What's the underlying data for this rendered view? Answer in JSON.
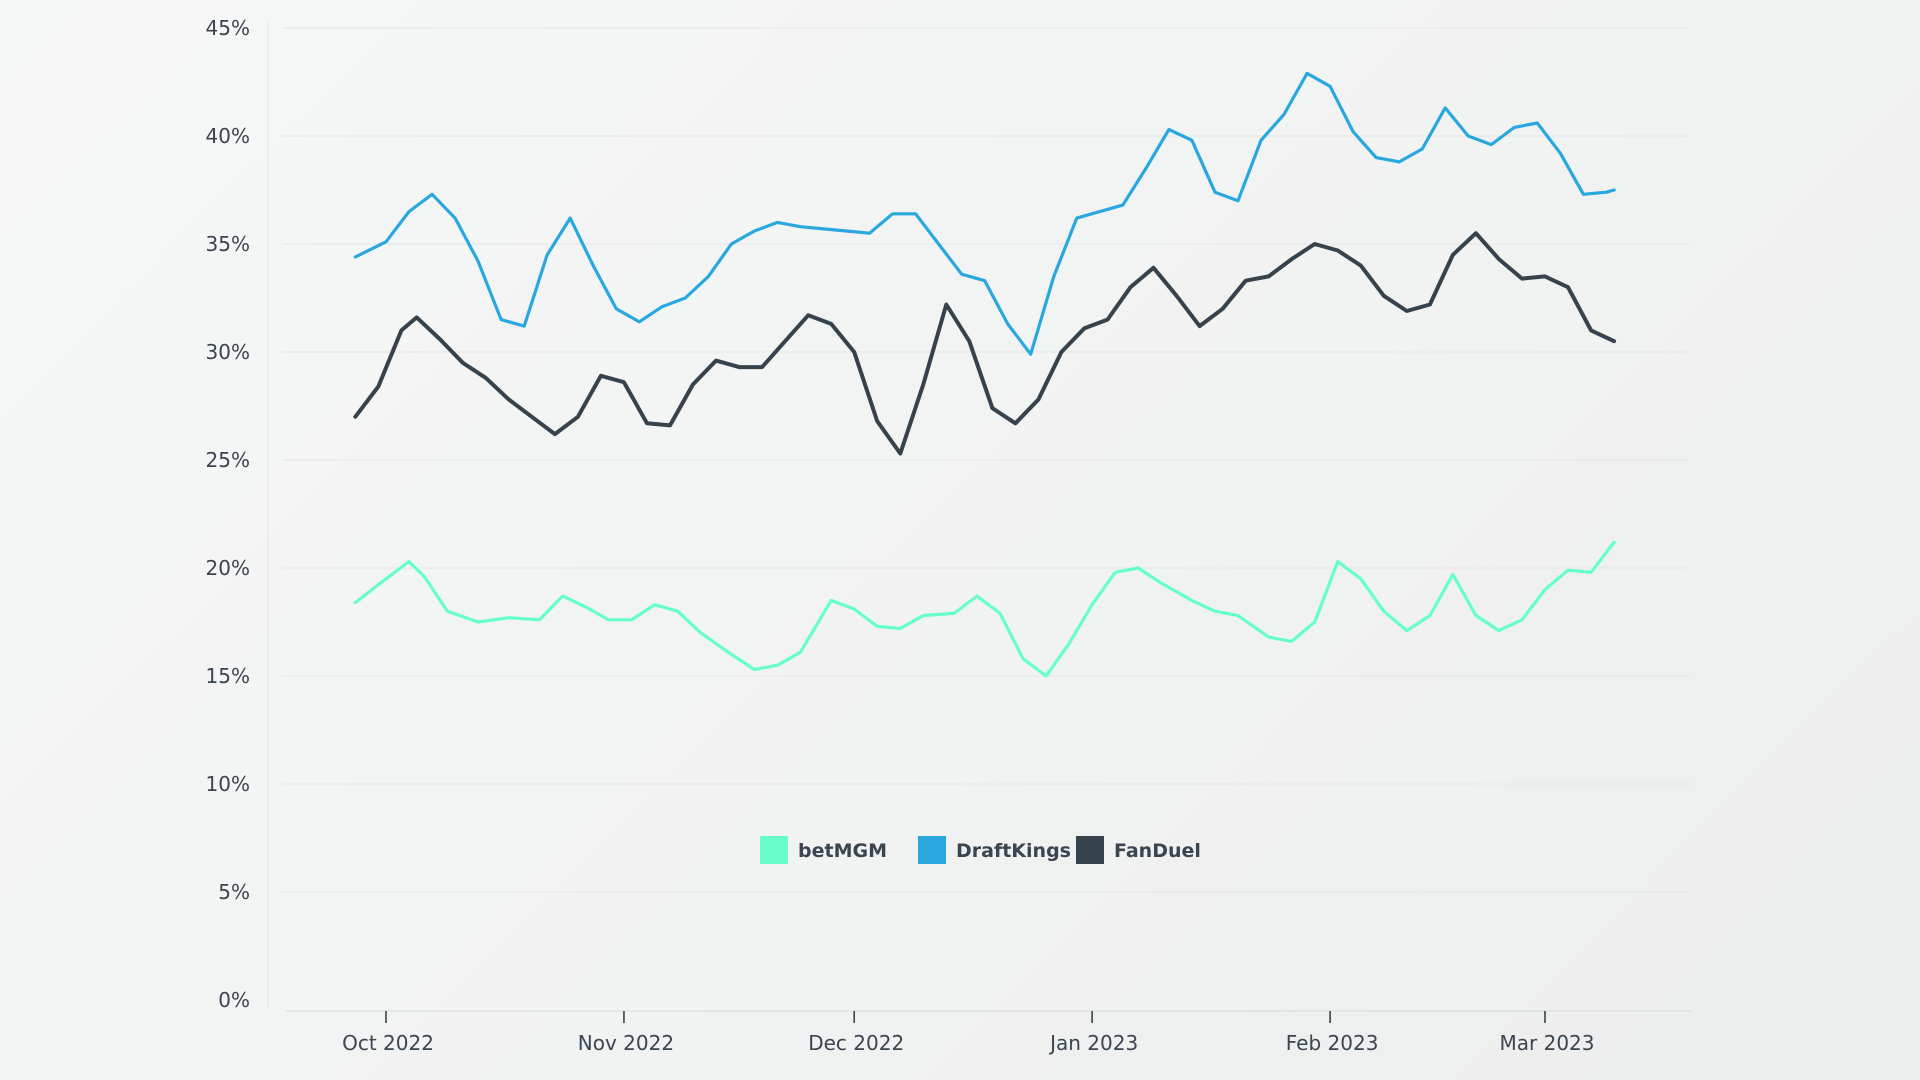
{
  "chart_data": {
    "type": "line",
    "title": "",
    "xlabel": "",
    "ylabel": "",
    "ylim": [
      0,
      45
    ],
    "y_ticks": [
      "0%",
      "5%",
      "10%",
      "15%",
      "20%",
      "25%",
      "30%",
      "35%",
      "40%",
      "45%"
    ],
    "x_ticks": [
      {
        "label": "Oct 2022",
        "date": "2022-10-01"
      },
      {
        "label": "Nov 2022",
        "date": "2022-11-01"
      },
      {
        "label": "Dec 2022",
        "date": "2022-12-01"
      },
      {
        "label": "Jan 2023",
        "date": "2023-01-01"
      },
      {
        "label": "Feb 2023",
        "date": "2023-02-01"
      },
      {
        "label": "Mar 2023",
        "date": "2023-03-01"
      }
    ],
    "grid": "horizontal",
    "legend_position": "center",
    "series": [
      {
        "name": "betMGM",
        "color": "#66ffcc",
        "points": [
          [
            "2022-09-27",
            18.4
          ],
          [
            "2022-10-01",
            19.5
          ],
          [
            "2022-10-04",
            20.3
          ],
          [
            "2022-10-06",
            19.6
          ],
          [
            "2022-10-09",
            18.0
          ],
          [
            "2022-10-13",
            17.5
          ],
          [
            "2022-10-17",
            17.7
          ],
          [
            "2022-10-21",
            17.6
          ],
          [
            "2022-10-24",
            18.7
          ],
          [
            "2022-10-27",
            18.2
          ],
          [
            "2022-10-30",
            17.6
          ],
          [
            "2022-11-02",
            17.6
          ],
          [
            "2022-11-05",
            18.3
          ],
          [
            "2022-11-08",
            18.0
          ],
          [
            "2022-11-11",
            17.0
          ],
          [
            "2022-11-15",
            16.0
          ],
          [
            "2022-11-18",
            15.3
          ],
          [
            "2022-11-21",
            15.5
          ],
          [
            "2022-11-24",
            16.1
          ],
          [
            "2022-11-28",
            18.5
          ],
          [
            "2022-12-01",
            18.1
          ],
          [
            "2022-12-04",
            17.3
          ],
          [
            "2022-12-07",
            17.2
          ],
          [
            "2022-12-10",
            17.8
          ],
          [
            "2022-12-14",
            17.9
          ],
          [
            "2022-12-17",
            18.7
          ],
          [
            "2022-12-20",
            17.9
          ],
          [
            "2022-12-23",
            15.8
          ],
          [
            "2022-12-26",
            15.0
          ],
          [
            "2022-12-29",
            16.5
          ],
          [
            "2023-01-01",
            18.3
          ],
          [
            "2023-01-04",
            19.8
          ],
          [
            "2023-01-07",
            20.0
          ],
          [
            "2023-01-10",
            19.3
          ],
          [
            "2023-01-14",
            18.5
          ],
          [
            "2023-01-17",
            18.0
          ],
          [
            "2023-01-20",
            17.8
          ],
          [
            "2023-01-24",
            16.8
          ],
          [
            "2023-01-27",
            16.6
          ],
          [
            "2023-01-30",
            17.5
          ],
          [
            "2023-02-02",
            20.3
          ],
          [
            "2023-02-05",
            19.5
          ],
          [
            "2023-02-08",
            18.0
          ],
          [
            "2023-02-11",
            17.1
          ],
          [
            "2023-02-14",
            17.8
          ],
          [
            "2023-02-17",
            19.7
          ],
          [
            "2023-02-20",
            17.8
          ],
          [
            "2023-02-23",
            17.1
          ],
          [
            "2023-02-26",
            17.6
          ],
          [
            "2023-03-01",
            19.0
          ],
          [
            "2023-03-04",
            19.9
          ],
          [
            "2023-03-07",
            19.8
          ],
          [
            "2023-03-10",
            21.2
          ]
        ]
      },
      {
        "name": "DraftKings",
        "color": "#29a8df",
        "points": [
          [
            "2022-09-27",
            34.4
          ],
          [
            "2022-10-01",
            35.1
          ],
          [
            "2022-10-04",
            36.5
          ],
          [
            "2022-10-07",
            37.3
          ],
          [
            "2022-10-10",
            36.2
          ],
          [
            "2022-10-13",
            34.2
          ],
          [
            "2022-10-16",
            31.5
          ],
          [
            "2022-10-19",
            31.2
          ],
          [
            "2022-10-22",
            34.5
          ],
          [
            "2022-10-25",
            36.2
          ],
          [
            "2022-10-28",
            34.0
          ],
          [
            "2022-10-31",
            32.0
          ],
          [
            "2022-11-03",
            31.4
          ],
          [
            "2022-11-06",
            32.1
          ],
          [
            "2022-11-09",
            32.5
          ],
          [
            "2022-11-12",
            33.5
          ],
          [
            "2022-11-15",
            35.0
          ],
          [
            "2022-11-18",
            35.6
          ],
          [
            "2022-11-21",
            36.0
          ],
          [
            "2022-11-24",
            35.8
          ],
          [
            "2022-11-27",
            35.7
          ],
          [
            "2022-11-30",
            35.6
          ],
          [
            "2022-12-03",
            35.5
          ],
          [
            "2022-12-06",
            36.4
          ],
          [
            "2022-12-09",
            36.4
          ],
          [
            "2022-12-12",
            35.0
          ],
          [
            "2022-12-15",
            33.6
          ],
          [
            "2022-12-18",
            33.3
          ],
          [
            "2022-12-21",
            31.3
          ],
          [
            "2022-12-24",
            29.9
          ],
          [
            "2022-12-27",
            33.5
          ],
          [
            "2022-12-30",
            36.2
          ],
          [
            "2023-01-02",
            36.5
          ],
          [
            "2023-01-05",
            36.8
          ],
          [
            "2023-01-08",
            38.5
          ],
          [
            "2023-01-11",
            40.3
          ],
          [
            "2023-01-14",
            39.8
          ],
          [
            "2023-01-17",
            37.4
          ],
          [
            "2023-01-20",
            37.0
          ],
          [
            "2023-01-23",
            39.8
          ],
          [
            "2023-01-26",
            41.0
          ],
          [
            "2023-01-29",
            42.9
          ],
          [
            "2023-02-01",
            42.3
          ],
          [
            "2023-02-04",
            40.2
          ],
          [
            "2023-02-07",
            39.0
          ],
          [
            "2023-02-10",
            38.8
          ],
          [
            "2023-02-13",
            39.4
          ],
          [
            "2023-02-16",
            41.3
          ],
          [
            "2023-02-19",
            40.0
          ],
          [
            "2023-02-22",
            39.6
          ],
          [
            "2023-02-25",
            40.4
          ],
          [
            "2023-02-28",
            40.6
          ],
          [
            "2023-03-03",
            39.2
          ],
          [
            "2023-03-06",
            37.3
          ],
          [
            "2023-03-09",
            37.4
          ],
          [
            "2023-03-10",
            37.5
          ]
        ]
      },
      {
        "name": "FanDuel",
        "color": "#36434d",
        "points": [
          [
            "2022-09-27",
            27.0
          ],
          [
            "2022-09-30",
            28.4
          ],
          [
            "2022-10-03",
            31.0
          ],
          [
            "2022-10-05",
            31.6
          ],
          [
            "2022-10-08",
            30.6
          ],
          [
            "2022-10-11",
            29.5
          ],
          [
            "2022-10-14",
            28.8
          ],
          [
            "2022-10-17",
            27.8
          ],
          [
            "2022-10-20",
            27.0
          ],
          [
            "2022-10-23",
            26.2
          ],
          [
            "2022-10-26",
            27.0
          ],
          [
            "2022-10-29",
            28.9
          ],
          [
            "2022-11-01",
            28.6
          ],
          [
            "2022-11-04",
            26.7
          ],
          [
            "2022-11-07",
            26.6
          ],
          [
            "2022-11-10",
            28.5
          ],
          [
            "2022-11-13",
            29.6
          ],
          [
            "2022-11-16",
            29.3
          ],
          [
            "2022-11-19",
            29.3
          ],
          [
            "2022-11-22",
            30.5
          ],
          [
            "2022-11-25",
            31.7
          ],
          [
            "2022-11-28",
            31.3
          ],
          [
            "2022-12-01",
            30.0
          ],
          [
            "2022-12-04",
            26.8
          ],
          [
            "2022-12-07",
            25.3
          ],
          [
            "2022-12-10",
            28.5
          ],
          [
            "2022-12-13",
            32.2
          ],
          [
            "2022-12-16",
            30.5
          ],
          [
            "2022-12-19",
            27.4
          ],
          [
            "2022-12-22",
            26.7
          ],
          [
            "2022-12-25",
            27.8
          ],
          [
            "2022-12-28",
            30.0
          ],
          [
            "2022-12-31",
            31.1
          ],
          [
            "2023-01-03",
            31.5
          ],
          [
            "2023-01-06",
            33.0
          ],
          [
            "2023-01-09",
            33.9
          ],
          [
            "2023-01-12",
            32.6
          ],
          [
            "2023-01-15",
            31.2
          ],
          [
            "2023-01-18",
            32.0
          ],
          [
            "2023-01-21",
            33.3
          ],
          [
            "2023-01-24",
            33.5
          ],
          [
            "2023-01-27",
            34.3
          ],
          [
            "2023-01-30",
            35.0
          ],
          [
            "2023-02-02",
            34.7
          ],
          [
            "2023-02-05",
            34.0
          ],
          [
            "2023-02-08",
            32.6
          ],
          [
            "2023-02-11",
            31.9
          ],
          [
            "2023-02-14",
            32.2
          ],
          [
            "2023-02-17",
            34.5
          ],
          [
            "2023-02-20",
            35.5
          ],
          [
            "2023-02-23",
            34.3
          ],
          [
            "2023-02-26",
            33.4
          ],
          [
            "2023-03-01",
            33.5
          ],
          [
            "2023-03-04",
            33.0
          ],
          [
            "2023-03-07",
            31.0
          ],
          [
            "2023-03-10",
            30.5
          ]
        ]
      }
    ]
  }
}
